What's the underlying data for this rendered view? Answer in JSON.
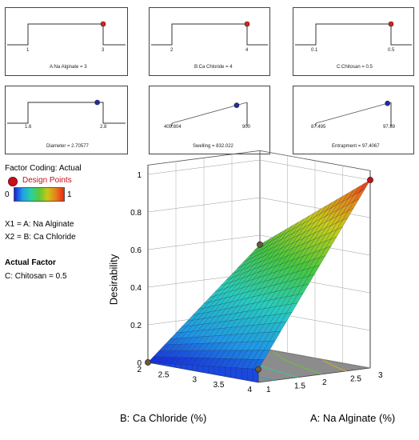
{
  "ramps": [
    {
      "id": "a",
      "min_label": "1",
      "max_label": "3",
      "label": "A:Na Alginate = 3",
      "type": "step",
      "value": 3,
      "min": 1,
      "max": 3,
      "dot_color": "#e02020"
    },
    {
      "id": "b",
      "min_label": "2",
      "max_label": "4",
      "label": "B:Ca Chloride = 4",
      "type": "step",
      "value": 4,
      "min": 2,
      "max": 4,
      "dot_color": "#e02020"
    },
    {
      "id": "c",
      "min_label": "0.1",
      "max_label": "0.5",
      "label": "C:Chitosan = 0.5",
      "type": "step",
      "value": 0.5,
      "min": 0.1,
      "max": 0.5,
      "dot_color": "#e02020"
    },
    {
      "id": "d",
      "min_label": "1.6",
      "max_label": "2.8",
      "label": "Diameter = 2.70577",
      "type": "step",
      "value": 2.70577,
      "min": 1.6,
      "max": 2.8,
      "dot_color": "#1a2fa8"
    },
    {
      "id": "e",
      "min_label": "409.804",
      "max_label": "900",
      "label": "Swelling = 832.022",
      "type": "ramp",
      "value": 832.022,
      "min": 409.804,
      "max": 900,
      "dot_color": "#1a2fa8"
    },
    {
      "id": "f",
      "min_label": "87.495",
      "max_label": "97.89",
      "label": "Entrapment = 97.4067",
      "type": "ramp",
      "value": 97.4067,
      "min": 87.495,
      "max": 97.89,
      "dot_color": "#1a2fa8"
    }
  ],
  "legend": {
    "factor_coding": "Factor Coding: Actual",
    "design_points_label": "Design Points",
    "design_point_color": "#c8101a",
    "scale_min": "0",
    "scale_max": "1"
  },
  "factors": {
    "x1": "X1 = A: Na Alginate",
    "x2": "X2 = B: Ca Chloride",
    "actual_factor_heading": "Actual Factor",
    "actual_factor": "C: Chitosan = 0.5"
  },
  "chart_data": {
    "type": "surface",
    "zlabel": "Desirability",
    "xlabel": "A: Na Alginate (%)",
    "ylabel": "B: Ca Chloride (%)",
    "x_ticks": [
      "1",
      "1.5",
      "2",
      "2.5",
      "3"
    ],
    "y_ticks": [
      "2",
      "2.5",
      "3",
      "3.5",
      "4"
    ],
    "z_ticks": [
      "0",
      "0.2",
      "0.4",
      "0.6",
      "0.8",
      "1"
    ],
    "xlim": [
      1,
      3
    ],
    "ylim": [
      2,
      4
    ],
    "zlim": [
      0,
      1
    ],
    "corner_values": {
      "a1_b2": 0.0,
      "a3_b2": 0.55,
      "a1_b4": 0.07,
      "a3_b4": 1.0
    },
    "design_points": [
      {
        "a": 3,
        "b": 4,
        "z": 1.0
      },
      {
        "a": 3,
        "b": 2,
        "z": 0.55
      },
      {
        "a": 1,
        "b": 4,
        "z": 0.07
      },
      {
        "a": 1,
        "b": 2,
        "z": 0.0
      }
    ]
  }
}
